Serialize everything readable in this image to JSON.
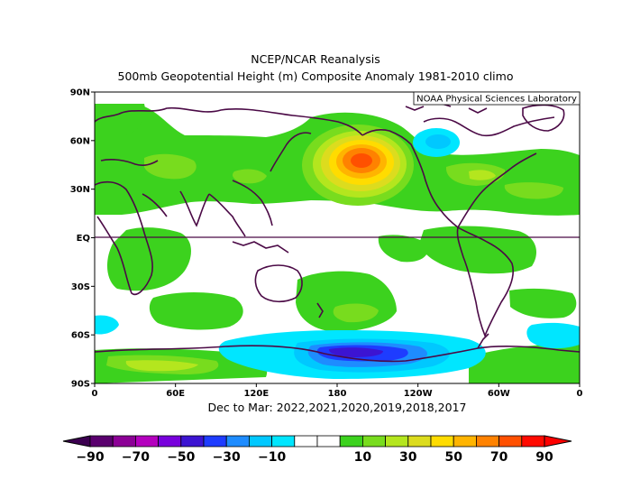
{
  "title_line1": "NCEP/NCAR Reanalysis",
  "title_line2": "500mb Geopotential Height (m) Composite Anomaly 1981-2010 climo",
  "credit": "NOAA Physical Sciences Laboratory",
  "subtitle": "Dec to Mar: 2022,2021,2020,2019,2018,2017",
  "lat_labels": [
    "90N",
    "60N",
    "30N",
    "EQ",
    "30S",
    "60S",
    "90S"
  ],
  "lon_labels": [
    "0",
    "60E",
    "120E",
    "180",
    "120W",
    "60W",
    "0"
  ],
  "colorbar": {
    "ticks": [
      "−90",
      "−70",
      "−50",
      "−30",
      "−10",
      "10",
      "30",
      "50",
      "70",
      "90"
    ],
    "colors": [
      "#5a006e",
      "#8c0096",
      "#b400be",
      "#7800dc",
      "#3c14d2",
      "#1e3cff",
      "#1e8cff",
      "#00c8ff",
      "#00e6ff",
      "#ffffff",
      "#ffffff",
      "#3cd21e",
      "#78dc1e",
      "#b4e61e",
      "#dcdc1e",
      "#ffdc00",
      "#ffb400",
      "#ff8200",
      "#ff5000",
      "#ff0a00"
    ],
    "underflow_color": "#3c0050",
    "overflow_color": "#ff0000"
  },
  "chart_data": {
    "type": "heatmap",
    "title": "500mb Geopotential Height (m) Composite Anomaly 1981-2010 climo",
    "xlim": [
      0,
      360
    ],
    "ylim": [
      -90,
      90
    ],
    "units": "m",
    "anomaly_features": [
      {
        "lat": 47,
        "lon": 195,
        "value": 65
      },
      {
        "lat": 55,
        "lon": 270,
        "value": -20
      },
      {
        "lat": -70,
        "lon": 220,
        "value": -55
      },
      {
        "lat": -75,
        "lon": 20,
        "value": 35
      },
      {
        "lat": -57,
        "lon": 195,
        "value": 30
      },
      {
        "lat": 33,
        "lon": 75,
        "value": 20
      },
      {
        "lat": 36,
        "lon": 290,
        "value": 30
      },
      {
        "lat": -52,
        "lon": 0,
        "value": -15
      },
      {
        "lat": -53,
        "lon": 335,
        "value": -15
      }
    ]
  }
}
